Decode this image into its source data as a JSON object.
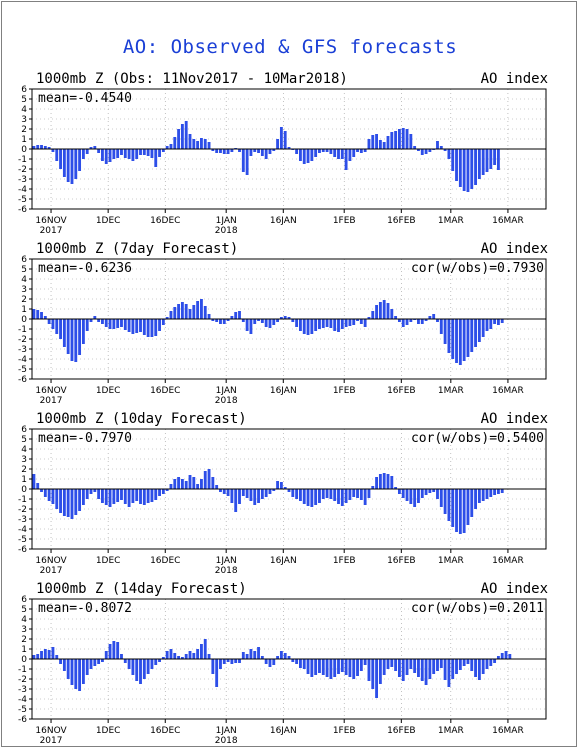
{
  "page_title": "AO: Observed & GFS forecasts",
  "colors": {
    "bar": "#2d4ee8",
    "title": "#1a3fd6",
    "axis": "#000000",
    "grid": "#9a9a9a"
  },
  "chart_data": [
    {
      "type": "bar",
      "title": "1000mb Z (Obs: 11Nov2017 - 10Mar2018)",
      "right_label": "AO index",
      "mean_label": "mean=-0.4540",
      "cor_label": "",
      "ylim": [
        -6,
        6
      ],
      "yticks": [
        -6,
        -5,
        -4,
        -3,
        -2,
        -1,
        0,
        1,
        2,
        3,
        4,
        5,
        6
      ],
      "xlim": [
        "2017-11-11",
        "2018-03-26"
      ],
      "xticks": [
        {
          "date": "2017-11-16",
          "label": "16NOV",
          "sub": "2017"
        },
        {
          "date": "2017-12-01",
          "label": "1DEC",
          "sub": ""
        },
        {
          "date": "2017-12-16",
          "label": "16DEC",
          "sub": ""
        },
        {
          "date": "2018-01-01",
          "label": "1JAN",
          "sub": "2018"
        },
        {
          "date": "2018-01-16",
          "label": "16JAN",
          "sub": ""
        },
        {
          "date": "2018-02-01",
          "label": "1FEB",
          "sub": ""
        },
        {
          "date": "2018-02-16",
          "label": "16FEB",
          "sub": ""
        },
        {
          "date": "2018-03-01",
          "label": "1MAR",
          "sub": ""
        },
        {
          "date": "2018-03-16",
          "label": "16MAR",
          "sub": ""
        }
      ],
      "start_date": "2017-11-11",
      "values": [
        0.3,
        0.4,
        0.4,
        0.3,
        0.2,
        -0.3,
        -1.2,
        -2.0,
        -2.8,
        -3.3,
        -3.5,
        -3.0,
        -2.2,
        -1.0,
        -0.5,
        0.2,
        0.3,
        -0.4,
        -1.2,
        -1.5,
        -1.3,
        -1.0,
        -0.9,
        -0.6,
        -0.9,
        -1.0,
        -1.2,
        -1.0,
        -0.6,
        -0.6,
        -0.7,
        -0.9,
        -1.8,
        -0.8,
        -0.3,
        0.3,
        0.5,
        1.2,
        2.0,
        2.5,
        2.8,
        1.5,
        1.0,
        0.8,
        1.1,
        1.0,
        0.7,
        -0.2,
        -0.4,
        -0.4,
        -0.5,
        -0.5,
        -0.3,
        0.1,
        -0.3,
        -2.3,
        -2.6,
        -0.7,
        -0.3,
        -0.4,
        -0.7,
        -1.0,
        -0.5,
        -0.2,
        1.0,
        2.2,
        1.8,
        0.2,
        -0.1,
        -0.5,
        -1.2,
        -1.5,
        -1.4,
        -1.2,
        -0.8,
        -0.4,
        -0.3,
        -0.3,
        -0.5,
        -0.8,
        -1.0,
        -1.0,
        -2.1,
        -1.2,
        -0.8,
        -0.3,
        -0.4,
        -0.3,
        1.0,
        1.4,
        1.5,
        0.9,
        0.7,
        1.3,
        1.7,
        1.8,
        2.0,
        2.1,
        2.0,
        1.5,
        0.3,
        -0.2,
        -0.6,
        -0.5,
        -0.3,
        -0.1,
        0.8,
        0.3,
        -0.2,
        -1.0,
        -2.2,
        -3.2,
        -3.8,
        -4.2,
        -4.3,
        -4.0,
        -3.6,
        -3.0,
        -2.6,
        -2.3,
        -2.0,
        -1.6,
        -2.1
      ]
    },
    {
      "type": "bar",
      "title": "1000mb Z (7day Forecast)",
      "right_label": "AO index",
      "mean_label": "mean=-0.6236",
      "cor_label": "cor(w/obs)=0.7930",
      "ylim": [
        -6,
        6
      ],
      "yticks": [
        -6,
        -5,
        -4,
        -3,
        -2,
        -1,
        0,
        1,
        2,
        3,
        4,
        5,
        6
      ],
      "xlim": [
        "2017-11-11",
        "2018-03-26"
      ],
      "xticks": [
        {
          "date": "2017-11-16",
          "label": "16NOV",
          "sub": "2017"
        },
        {
          "date": "2017-12-01",
          "label": "1DEC",
          "sub": ""
        },
        {
          "date": "2017-12-16",
          "label": "16DEC",
          "sub": ""
        },
        {
          "date": "2018-01-01",
          "label": "1JAN",
          "sub": "2018"
        },
        {
          "date": "2018-01-16",
          "label": "16JAN",
          "sub": ""
        },
        {
          "date": "2018-02-01",
          "label": "1FEB",
          "sub": ""
        },
        {
          "date": "2018-02-16",
          "label": "16FEB",
          "sub": ""
        },
        {
          "date": "2018-03-01",
          "label": "1MAR",
          "sub": ""
        },
        {
          "date": "2018-03-16",
          "label": "16MAR",
          "sub": ""
        }
      ],
      "start_date": "2017-11-11",
      "values": [
        1.0,
        0.9,
        0.7,
        0.3,
        -0.5,
        -1.0,
        -1.5,
        -2.0,
        -2.8,
        -3.5,
        -4.2,
        -4.3,
        -3.6,
        -2.5,
        -1.2,
        -0.3,
        0.3,
        -0.3,
        -0.5,
        -0.8,
        -1.0,
        -1.0,
        -0.9,
        -0.8,
        -1.1,
        -1.3,
        -1.5,
        -1.4,
        -1.3,
        -1.6,
        -1.8,
        -1.8,
        -1.7,
        -1.2,
        -0.6,
        0.2,
        0.8,
        1.2,
        1.5,
        1.7,
        1.5,
        1.0,
        1.4,
        1.8,
        2.0,
        1.3,
        0.5,
        -0.2,
        -0.3,
        -0.5,
        -0.5,
        -0.2,
        0.3,
        0.7,
        0.8,
        -0.3,
        -1.2,
        -1.5,
        -0.5,
        -0.2,
        -0.4,
        -0.8,
        -0.9,
        -0.6,
        -0.3,
        0.2,
        0.3,
        0.2,
        -0.3,
        -0.8,
        -1.2,
        -1.5,
        -1.6,
        -1.5,
        -1.2,
        -1.0,
        -0.9,
        -0.8,
        -0.9,
        -1.2,
        -1.3,
        -1.0,
        -0.8,
        -0.7,
        -0.6,
        -0.2,
        -0.5,
        -0.8,
        0.2,
        0.8,
        1.4,
        1.7,
        1.9,
        1.6,
        1.0,
        0.3,
        -0.3,
        -0.8,
        -0.6,
        -0.3,
        -0.1,
        -0.5,
        -0.5,
        -0.2,
        0.3,
        0.5,
        -0.3,
        -1.5,
        -2.5,
        -3.4,
        -4.0,
        -4.4,
        -4.6,
        -4.2,
        -3.8,
        -3.3,
        -2.8,
        -2.3,
        -1.8,
        -1.2,
        -1.0,
        -0.5,
        -0.6,
        -0.4
      ]
    },
    {
      "type": "bar",
      "title": "1000mb Z (10day Forecast)",
      "right_label": "AO index",
      "mean_label": "mean=-0.7970",
      "cor_label": "cor(w/obs)=0.5400",
      "ylim": [
        -6,
        6
      ],
      "yticks": [
        -6,
        -5,
        -4,
        -3,
        -2,
        -1,
        0,
        1,
        2,
        3,
        4,
        5,
        6
      ],
      "xlim": [
        "2017-11-11",
        "2018-03-26"
      ],
      "xticks": [
        {
          "date": "2017-11-16",
          "label": "16NOV",
          "sub": "2017"
        },
        {
          "date": "2017-12-01",
          "label": "1DEC",
          "sub": ""
        },
        {
          "date": "2017-12-16",
          "label": "16DEC",
          "sub": ""
        },
        {
          "date": "2018-01-01",
          "label": "1JAN",
          "sub": "2018"
        },
        {
          "date": "2018-01-16",
          "label": "16JAN",
          "sub": ""
        },
        {
          "date": "2018-02-01",
          "label": "1FEB",
          "sub": ""
        },
        {
          "date": "2018-02-16",
          "label": "16FEB",
          "sub": ""
        },
        {
          "date": "2018-03-01",
          "label": "1MAR",
          "sub": ""
        },
        {
          "date": "2018-03-16",
          "label": "16MAR",
          "sub": ""
        }
      ],
      "start_date": "2017-11-11",
      "values": [
        1.5,
        0.6,
        -0.3,
        -0.8,
        -1.2,
        -1.5,
        -2.0,
        -2.4,
        -2.7,
        -2.8,
        -3.0,
        -2.6,
        -2.2,
        -1.6,
        -1.0,
        -0.5,
        -0.3,
        -1.0,
        -1.4,
        -1.6,
        -1.8,
        -1.5,
        -1.3,
        -1.1,
        -1.5,
        -1.8,
        -1.4,
        -1.2,
        -1.5,
        -1.6,
        -1.4,
        -1.3,
        -1.1,
        -0.7,
        -0.5,
        -0.2,
        0.5,
        1.0,
        1.2,
        1.0,
        0.8,
        1.4,
        1.2,
        0.5,
        1.0,
        1.8,
        2.0,
        1.2,
        0.4,
        -0.3,
        -0.5,
        -0.7,
        -1.4,
        -2.3,
        -1.5,
        -0.7,
        -0.9,
        -1.2,
        -1.6,
        -1.4,
        -1.0,
        -0.8,
        -0.5,
        -0.2,
        0.8,
        0.7,
        0.2,
        -0.3,
        -0.8,
        -1.0,
        -1.2,
        -1.5,
        -1.7,
        -1.8,
        -1.6,
        -1.4,
        -1.0,
        -0.9,
        -1.0,
        -1.2,
        -1.5,
        -1.7,
        -1.4,
        -1.1,
        -0.8,
        -0.9,
        -1.1,
        -1.6,
        -0.9,
        0.3,
        1.2,
        1.5,
        1.6,
        1.5,
        1.3,
        0.2,
        -0.5,
        -0.9,
        -1.2,
        -1.5,
        -1.8,
        -1.4,
        -0.9,
        -0.6,
        -0.4,
        -0.3,
        -1.0,
        -1.8,
        -2.5,
        -3.2,
        -3.8,
        -4.3,
        -4.5,
        -4.4,
        -3.6,
        -2.8,
        -2.0,
        -1.4,
        -1.2,
        -1.0,
        -0.8,
        -0.6,
        -0.5,
        -0.4
      ]
    },
    {
      "type": "bar",
      "title": "1000mb Z (14day Forecast)",
      "right_label": "AO index",
      "mean_label": "mean=-0.8072",
      "cor_label": "cor(w/obs)=0.2011",
      "ylim": [
        -6,
        6
      ],
      "yticks": [
        -6,
        -5,
        -4,
        -3,
        -2,
        -1,
        0,
        1,
        2,
        3,
        4,
        5,
        6
      ],
      "xlim": [
        "2017-11-11",
        "2018-03-26"
      ],
      "xticks": [
        {
          "date": "2017-11-16",
          "label": "16NOV",
          "sub": "2017"
        },
        {
          "date": "2017-12-01",
          "label": "1DEC",
          "sub": ""
        },
        {
          "date": "2017-12-16",
          "label": "16DEC",
          "sub": ""
        },
        {
          "date": "2018-01-01",
          "label": "1JAN",
          "sub": "2018"
        },
        {
          "date": "2018-01-16",
          "label": "16JAN",
          "sub": ""
        },
        {
          "date": "2018-02-01",
          "label": "1FEB",
          "sub": ""
        },
        {
          "date": "2018-02-16",
          "label": "16FEB",
          "sub": ""
        },
        {
          "date": "2018-03-01",
          "label": "1MAR",
          "sub": ""
        },
        {
          "date": "2018-03-16",
          "label": "16MAR",
          "sub": ""
        }
      ],
      "start_date": "2017-11-11",
      "values": [
        0.4,
        0.5,
        0.8,
        1.0,
        0.9,
        1.2,
        0.4,
        -0.5,
        -1.2,
        -2.0,
        -2.6,
        -3.0,
        -3.2,
        -2.5,
        -1.6,
        -1.0,
        -0.7,
        -0.5,
        -0.3,
        0.8,
        1.5,
        1.8,
        1.7,
        0.5,
        -0.4,
        -1.0,
        -1.6,
        -2.2,
        -2.5,
        -2.0,
        -1.5,
        -1.0,
        -0.6,
        -0.3,
        0.2,
        0.8,
        1.0,
        0.6,
        0.3,
        0.2,
        0.5,
        0.8,
        0.6,
        1.0,
        1.5,
        2.0,
        0.5,
        -1.5,
        -2.8,
        -1.0,
        -0.5,
        -0.3,
        -0.5,
        -0.4,
        -0.4,
        0.7,
        0.5,
        1.0,
        0.8,
        1.2,
        0.3,
        -0.5,
        -0.8,
        -0.6,
        0.3,
        0.8,
        0.6,
        0.3,
        -0.3,
        -0.5,
        -0.9,
        -1.0,
        -1.5,
        -1.8,
        -1.6,
        -1.4,
        -1.6,
        -1.8,
        -2.0,
        -1.8,
        -1.5,
        -1.3,
        -1.6,
        -1.8,
        -2.0,
        -1.7,
        -1.2,
        -0.6,
        -2.2,
        -3.0,
        -3.9,
        -2.5,
        -1.6,
        -1.0,
        -0.8,
        -1.2,
        -1.8,
        -2.2,
        -1.6,
        -1.0,
        -1.4,
        -1.8,
        -2.2,
        -2.6,
        -2.0,
        -1.5,
        -1.2,
        -0.9,
        -2.1,
        -2.8,
        -2.0,
        -1.5,
        -1.1,
        -0.7,
        -0.5,
        -1.2,
        -1.8,
        -2.1,
        -1.5,
        -1.0,
        -0.7,
        -0.4,
        0.3,
        0.6,
        0.8,
        0.5
      ]
    }
  ]
}
